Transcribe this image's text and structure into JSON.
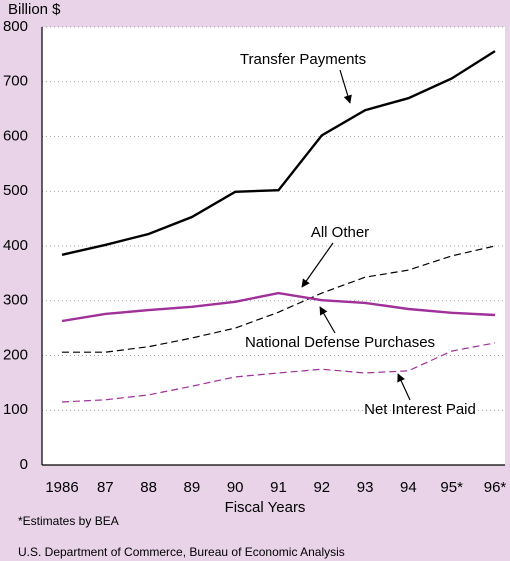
{
  "chart_data": {
    "type": "line",
    "y_label": "Billion $",
    "x_label": "Fiscal Years",
    "categories": [
      "1986",
      "87",
      "88",
      "89",
      "90",
      "91",
      "92",
      "93",
      "94",
      "95*",
      "96*"
    ],
    "series": [
      {
        "name": "Transfer Payments",
        "color": "#000000",
        "dashed": false,
        "values": [
          384,
          402,
          422,
          453,
          499,
          502,
          602,
          648,
          670,
          706,
          756
        ]
      },
      {
        "name": "All Other",
        "color": "#000000",
        "dashed": true,
        "values": [
          206,
          206,
          216,
          232,
          250,
          279,
          314,
          343,
          356,
          382,
          400
        ]
      },
      {
        "name": "National Defense Purchases",
        "color": "#a0309a",
        "dashed": false,
        "values": [
          263,
          276,
          283,
          289,
          298,
          314,
          301,
          296,
          285,
          278,
          274
        ]
      },
      {
        "name": "Net Interest Paid",
        "color": "#a0309a",
        "dashed": true,
        "values": [
          115,
          119,
          128,
          144,
          161,
          168,
          175,
          168,
          172,
          208,
          223
        ]
      }
    ],
    "ylim": [
      0,
      800
    ],
    "yticks": [
      0,
      100,
      200,
      300,
      400,
      500,
      600,
      700,
      800
    ],
    "grid": true,
    "footnotes": [
      "*Estimates by BEA",
      "U.S. Department of Commerce, Bureau of Economic Analysis"
    ]
  }
}
